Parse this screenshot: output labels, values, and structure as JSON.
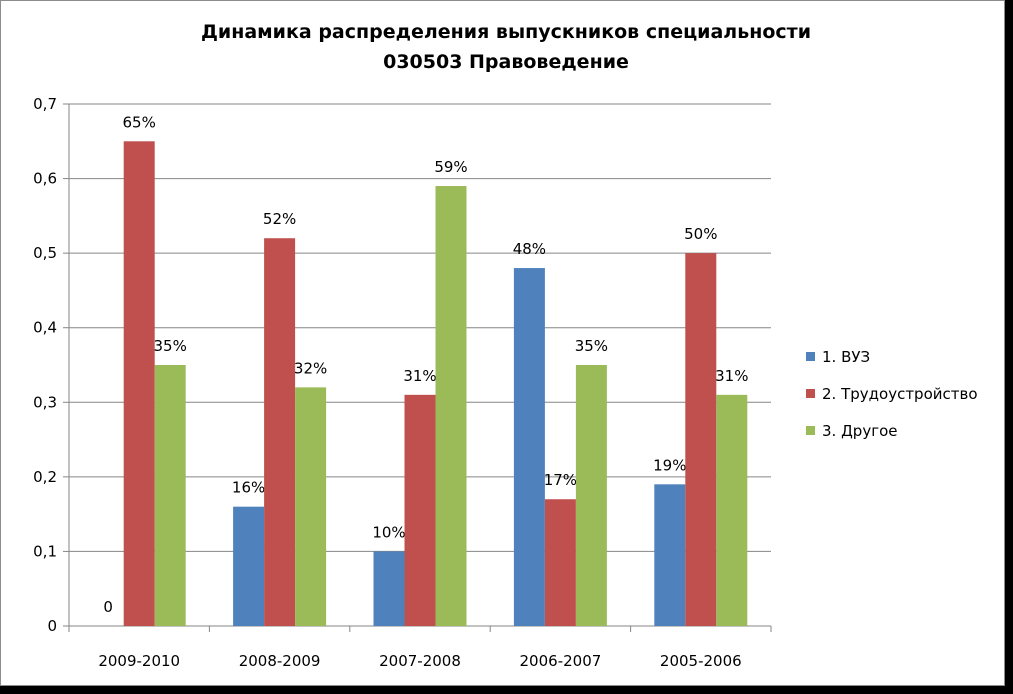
{
  "chart_data": {
    "type": "bar",
    "title_lines": [
      "Динамика распределения выпускников  специальности",
      "030503 Правоведение"
    ],
    "categories": [
      "2009-2010",
      "2008-2009",
      "2007-2008",
      "2006-2007",
      "2005-2006"
    ],
    "series": [
      {
        "name": "1. ВУЗ",
        "color": "#4f81bd",
        "values": [
          0,
          0.16,
          0.1,
          0.48,
          0.19
        ],
        "labels": [
          "0",
          "16%",
          "10%",
          "48%",
          "19%"
        ]
      },
      {
        "name": "2. Трудоустройство",
        "color": "#c0504d",
        "values": [
          0.65,
          0.52,
          0.31,
          0.17,
          0.5
        ],
        "labels": [
          "65%",
          "52%",
          "31%",
          "17%",
          "50%"
        ]
      },
      {
        "name": "3. Другое",
        "color": "#9bbb59",
        "values": [
          0.35,
          0.32,
          0.59,
          0.35,
          0.31
        ],
        "labels": [
          "35%",
          "32%",
          "59%",
          "35%",
          "31%"
        ]
      }
    ],
    "y_ticks": [
      "0",
      "0,1",
      "0,2",
      "0,3",
      "0,4",
      "0,5",
      "0,6",
      "0,7"
    ],
    "ylim": [
      0,
      0.7
    ],
    "grid": true,
    "legend_position": "right"
  }
}
